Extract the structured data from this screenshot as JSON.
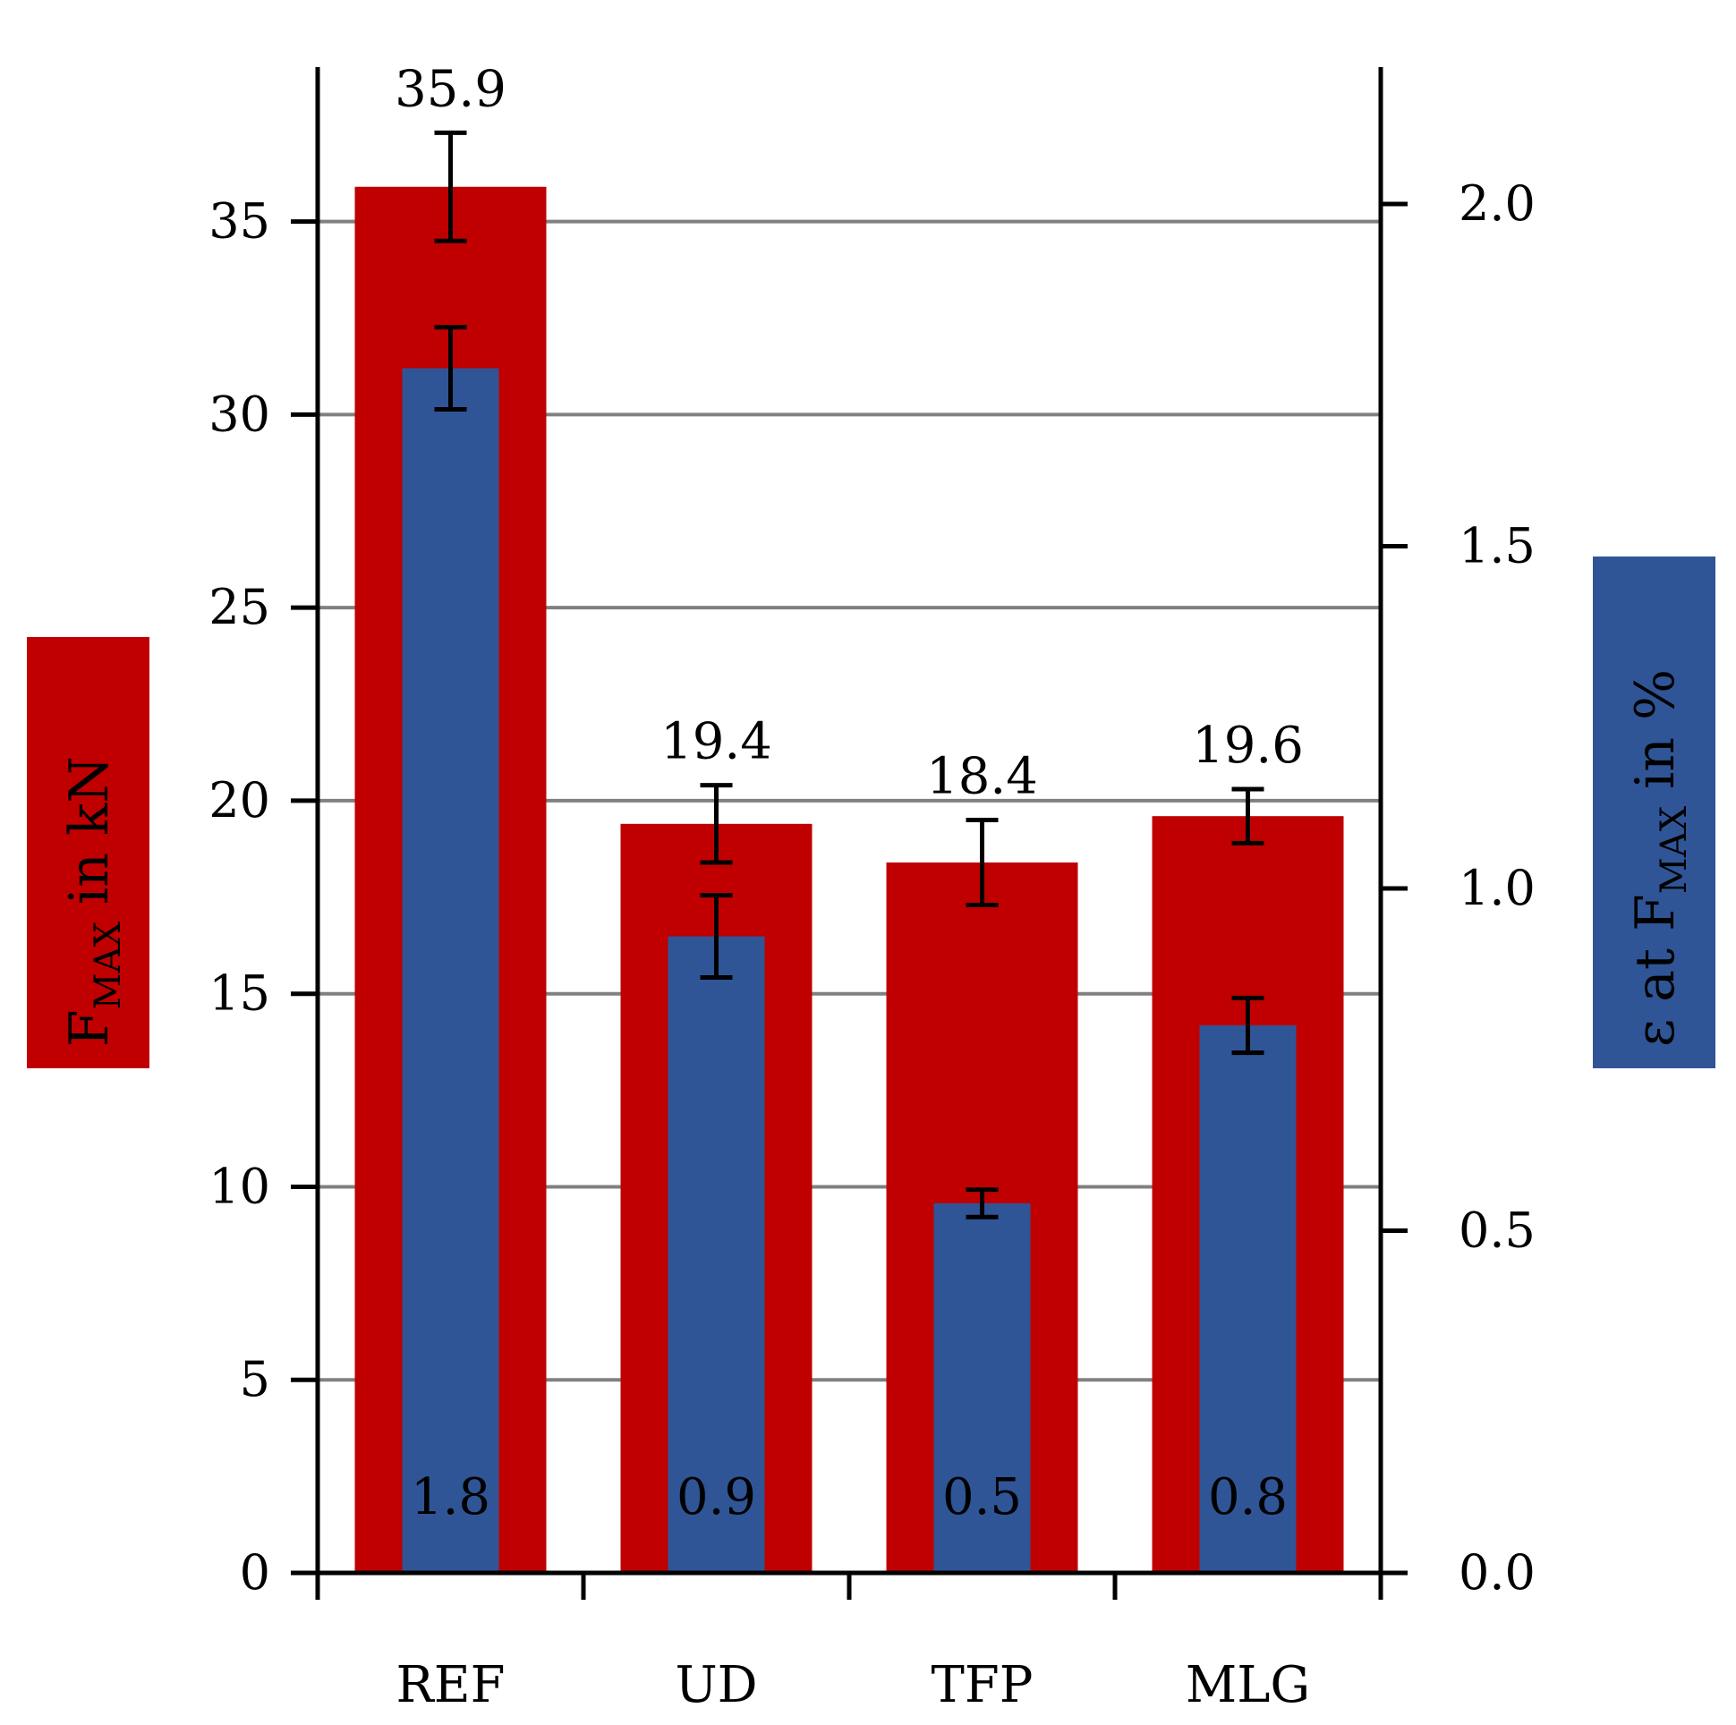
{
  "chart_data": {
    "type": "bar",
    "categories": [
      "REF",
      "UD",
      "TFP",
      "MLG"
    ],
    "series": [
      {
        "axis": "left",
        "color": "#c00000",
        "values": [
          35.9,
          19.4,
          18.4,
          19.6
        ],
        "error": [
          1.4,
          1.0,
          1.1,
          0.7
        ],
        "value_labels": [
          "35.9",
          "19.4",
          "18.4",
          "19.6"
        ]
      },
      {
        "axis": "right",
        "color": "#2f5597",
        "values": [
          1.76,
          0.93,
          0.54,
          0.8
        ],
        "error": [
          0.06,
          0.06,
          0.02,
          0.04
        ],
        "value_labels": [
          "1.8",
          "0.9",
          "0.5",
          "0.8"
        ]
      }
    ],
    "left_axis": {
      "label_main": "F",
      "label_sub": "MAX",
      "label_rest": " in kN",
      "ylim": [
        0,
        39
      ],
      "ticks": [
        0,
        5,
        10,
        15,
        20,
        25,
        30,
        35
      ],
      "tick_labels": [
        "0",
        "5",
        "10",
        "15",
        "20",
        "25",
        "30",
        "35"
      ],
      "label_bg": "#c00000"
    },
    "right_axis": {
      "label_main": "ε at F",
      "label_sub": "MAX",
      "label_rest": " in %",
      "ylim": [
        0,
        2.2
      ],
      "ticks": [
        0,
        0.5,
        1.0,
        1.5,
        2.0
      ],
      "tick_labels": [
        "0.0",
        "0.5",
        "1.0",
        "1.5",
        "2.0"
      ],
      "label_bg": "#2f5597"
    },
    "grid": true,
    "grid_color": "#808080"
  }
}
